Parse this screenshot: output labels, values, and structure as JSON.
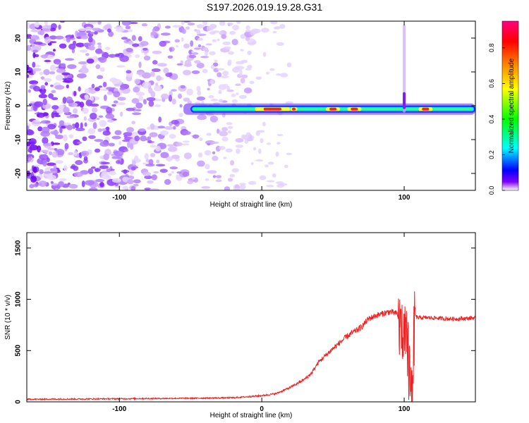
{
  "title": "S197.2026.019.19.28.G31",
  "chart_data": [
    {
      "type": "heatmap",
      "name": "spectrogram",
      "xlabel": "Height of straight line (km)",
      "ylabel": "Frequency (Hz)",
      "xlim": [
        -165,
        150
      ],
      "ylim": [
        -25,
        25
      ],
      "xticks": [
        -100,
        0,
        100
      ],
      "yticks": [
        -20,
        -10,
        0,
        10,
        20
      ],
      "colorbar": {
        "label": "Normalized spectral amplitude",
        "range": [
          0.0,
          0.95
        ],
        "ticks": [
          0.0,
          0.2,
          0.4,
          0.6,
          0.8
        ],
        "colors": [
          "#ffffff",
          "#8000ff",
          "#0000ff",
          "#00ffff",
          "#00ff00",
          "#ffff00",
          "#ff8000",
          "#ff0000",
          "#ff0080"
        ]
      },
      "features": {
        "noise_region_km": [
          -165,
          -45
        ],
        "signal_band_start_km": -55,
        "signal_band_center_hz": -1,
        "peak_segments_km": [
          [
            -5,
            20
          ],
          [
            20,
            25
          ],
          [
            45,
            55
          ],
          [
            60,
            70
          ],
          [
            110,
            120
          ]
        ],
        "spike_at_km": 100
      }
    },
    {
      "type": "line",
      "name": "snr",
      "xlabel": "Height of straight line (km)",
      "ylabel": "SNR (10 * v/v)",
      "xlim": [
        -165,
        150
      ],
      "ylim": [
        0,
        1650
      ],
      "xticks": [
        -100,
        0,
        100
      ],
      "yticks": [
        0,
        500,
        1000,
        1500
      ],
      "color": "#ee2222",
      "series": [
        {
          "name": "SNR",
          "x": [
            -165,
            -100,
            -50,
            -20,
            0,
            10,
            20,
            30,
            35,
            40,
            50,
            60,
            70,
            75,
            80,
            85,
            90,
            95,
            100,
            103,
            105,
            108,
            110,
            120,
            130,
            140,
            150
          ],
          "y": [
            25,
            30,
            35,
            40,
            60,
            80,
            140,
            220,
            280,
            390,
            520,
            640,
            730,
            810,
            840,
            860,
            880,
            860,
            600,
            400,
            140,
            830,
            820,
            820,
            810,
            810,
            820
          ]
        }
      ]
    }
  ]
}
